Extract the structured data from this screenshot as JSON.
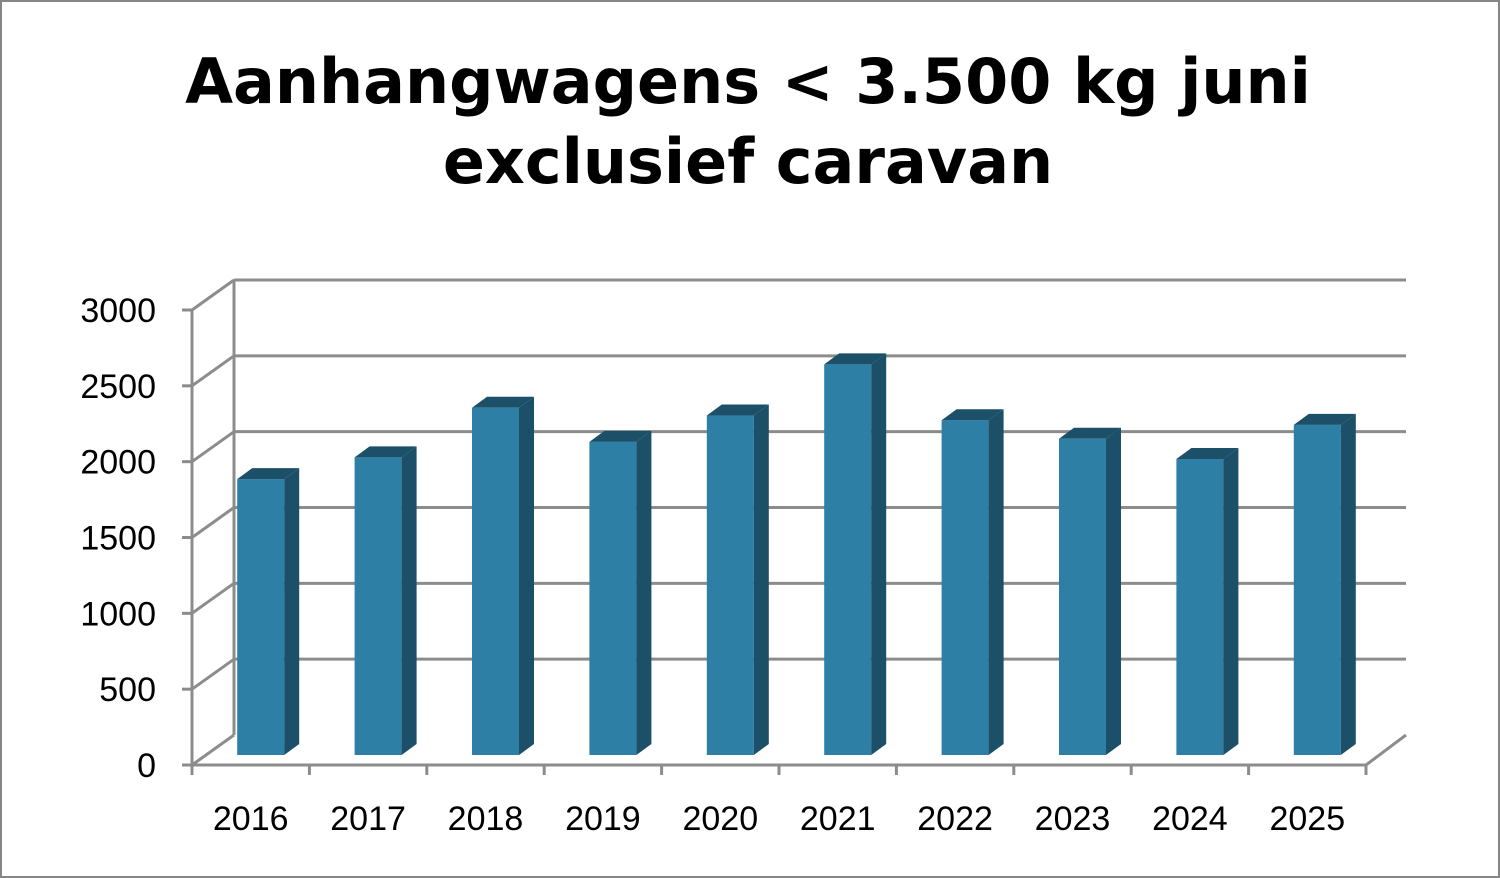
{
  "chart_data": {
    "type": "bar",
    "style": "3d-column",
    "title_lines": [
      "Aanhangwagens < 3.500 kg juni",
      "exclusief caravan"
    ],
    "xlabel": "",
    "ylabel": "",
    "categories": [
      "2016",
      "2017",
      "2018",
      "2019",
      "2020",
      "2021",
      "2022",
      "2023",
      "2024",
      "2025"
    ],
    "values": [
      1780,
      1920,
      2240,
      2020,
      2190,
      2520,
      2160,
      2040,
      1910,
      2130
    ],
    "ylim": [
      0,
      3000
    ],
    "yticks": [
      0,
      500,
      1000,
      1500,
      2000,
      2500,
      3000
    ],
    "grid": true,
    "legend": "none",
    "colors": {
      "bar_front": "#2E7FA6",
      "bar_side": "#1C4F68",
      "bar_top": "#3F8FB6",
      "grid": "#8C8C8C"
    }
  }
}
